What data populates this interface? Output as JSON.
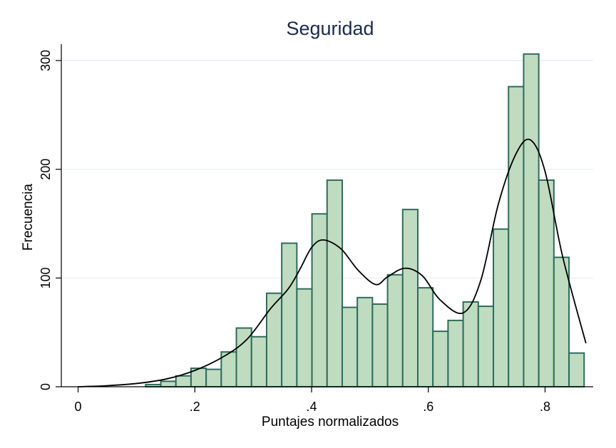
{
  "chart_data": {
    "type": "bar",
    "subtype": "histogram-with-density",
    "title": "Seguridad",
    "xlabel": "Puntajes normalizados",
    "ylabel": "Frecuencia",
    "xlim": [
      0,
      0.87
    ],
    "ylim": [
      0,
      300
    ],
    "x_ticks": [
      0,
      0.2,
      0.4,
      0.6,
      0.8
    ],
    "x_tick_labels": [
      "0",
      ".2",
      ".4",
      ".6",
      ".8"
    ],
    "y_ticks": [
      0,
      100,
      200,
      300
    ],
    "y_tick_labels": [
      "0",
      "100",
      "200",
      "300"
    ],
    "grid": true,
    "colors": {
      "bar_fill": "#bfdcc0",
      "bar_edge": "#2f6b5c",
      "density": "#000000",
      "title": "#1a2b4c"
    },
    "bins": [
      {
        "x0": 0.1158,
        "x1": 0.1417,
        "count": 2
      },
      {
        "x0": 0.1417,
        "x1": 0.1676,
        "count": 5
      },
      {
        "x0": 0.1676,
        "x1": 0.1935,
        "count": 10
      },
      {
        "x0": 0.1935,
        "x1": 0.2194,
        "count": 17
      },
      {
        "x0": 0.2194,
        "x1": 0.2453,
        "count": 16
      },
      {
        "x0": 0.2453,
        "x1": 0.2712,
        "count": 32
      },
      {
        "x0": 0.2712,
        "x1": 0.2971,
        "count": 54
      },
      {
        "x0": 0.2971,
        "x1": 0.323,
        "count": 46
      },
      {
        "x0": 0.323,
        "x1": 0.3489,
        "count": 86
      },
      {
        "x0": 0.3489,
        "x1": 0.3748,
        "count": 132
      },
      {
        "x0": 0.3748,
        "x1": 0.4007,
        "count": 90
      },
      {
        "x0": 0.4007,
        "x1": 0.4266,
        "count": 159
      },
      {
        "x0": 0.4266,
        "x1": 0.4525,
        "count": 190
      },
      {
        "x0": 0.4525,
        "x1": 0.4784,
        "count": 73
      },
      {
        "x0": 0.4784,
        "x1": 0.5043,
        "count": 82
      },
      {
        "x0": 0.5043,
        "x1": 0.5302,
        "count": 76
      },
      {
        "x0": 0.5302,
        "x1": 0.5561,
        "count": 103
      },
      {
        "x0": 0.5561,
        "x1": 0.582,
        "count": 163
      },
      {
        "x0": 0.582,
        "x1": 0.6079,
        "count": 91
      },
      {
        "x0": 0.6079,
        "x1": 0.6338,
        "count": 51
      },
      {
        "x0": 0.6338,
        "x1": 0.6597,
        "count": 61
      },
      {
        "x0": 0.6597,
        "x1": 0.6856,
        "count": 78
      },
      {
        "x0": 0.6856,
        "x1": 0.7115,
        "count": 74
      },
      {
        "x0": 0.7115,
        "x1": 0.7374,
        "count": 145
      },
      {
        "x0": 0.7374,
        "x1": 0.7633,
        "count": 276
      },
      {
        "x0": 0.7633,
        "x1": 0.7892,
        "count": 306
      },
      {
        "x0": 0.7892,
        "x1": 0.8151,
        "count": 190
      },
      {
        "x0": 0.8151,
        "x1": 0.841,
        "count": 119
      },
      {
        "x0": 0.841,
        "x1": 0.8669,
        "count": 31
      }
    ],
    "density_curve": {
      "x": [
        0,
        0.05,
        0.1,
        0.15,
        0.2,
        0.25,
        0.29,
        0.33,
        0.36,
        0.38,
        0.4,
        0.42,
        0.45,
        0.48,
        0.51,
        0.53,
        0.56,
        0.59,
        0.62,
        0.66,
        0.69,
        0.72,
        0.75,
        0.775,
        0.8,
        0.83,
        0.87
      ],
      "y": [
        0,
        1,
        3,
        7,
        15,
        28,
        44,
        72,
        90,
        108,
        128,
        135,
        127,
        107,
        94,
        101,
        109,
        102,
        80,
        68,
        98,
        168,
        214,
        227,
        198,
        120,
        40
      ]
    }
  }
}
